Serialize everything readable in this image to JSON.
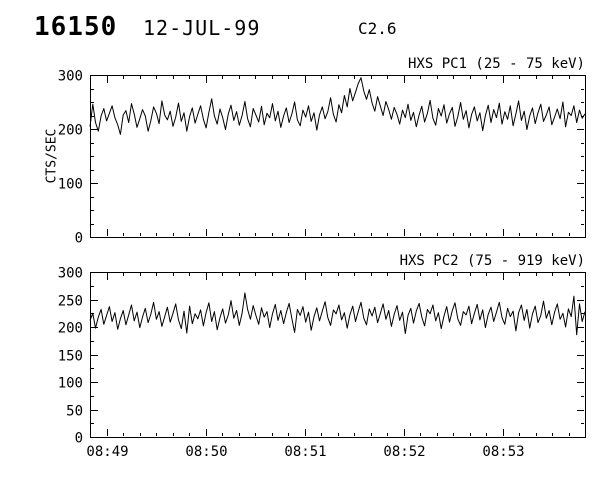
{
  "header": {
    "event_id": "16150",
    "date": "12-JUL-99",
    "goes_class": "C2.6"
  },
  "chart_data": [
    {
      "type": "line",
      "title": "HXS PC1 (25 - 75 keV)",
      "ylabel": "CTS/SEC",
      "xlabel": "",
      "ylim": [
        0,
        300
      ],
      "yticks": [
        0,
        100,
        200,
        300
      ],
      "y_minor_step": 25,
      "x_range_sec": [
        0,
        300
      ],
      "xticks_sec": [
        10,
        70,
        130,
        190,
        250
      ],
      "xtick_labels": [
        "",
        "",
        "",
        "",
        ""
      ],
      "time_tick_names": [
        "08:49",
        "08:50",
        "08:51",
        "08:52",
        "08:53"
      ],
      "x_minor_step_sec": 10,
      "grid": false,
      "values": [
        204,
        246,
        212,
        196,
        224,
        238,
        215,
        229,
        243,
        221,
        208,
        190,
        226,
        234,
        212,
        247,
        228,
        203,
        219,
        236,
        224,
        196,
        215,
        241,
        229,
        210,
        252,
        226,
        217,
        233,
        205,
        222,
        248,
        214,
        230,
        196,
        223,
        239,
        211,
        227,
        243,
        218,
        202,
        231,
        256,
        224,
        209,
        237,
        221,
        199,
        228,
        244,
        216,
        232,
        207,
        225,
        251,
        219,
        204,
        238,
        226,
        213,
        242,
        208,
        229,
        221,
        247,
        215,
        233,
        203,
        224,
        239,
        212,
        228,
        250,
        217,
        206,
        235,
        222,
        243,
        214,
        230,
        198,
        226,
        241,
        219,
        232,
        258,
        227,
        213,
        245,
        230,
        262,
        241,
        275,
        252,
        268,
        284,
        295,
        270,
        255,
        273,
        248,
        233,
        260,
        242,
        225,
        251,
        236,
        218,
        240,
        227,
        209,
        235,
        221,
        246,
        216,
        231,
        204,
        226,
        242,
        213,
        229,
        253,
        220,
        207,
        238,
        224,
        245,
        211,
        228,
        240,
        205,
        223,
        249,
        218,
        234,
        202,
        227,
        241,
        215,
        230,
        197,
        225,
        244,
        212,
        236,
        221,
        248,
        209,
        232,
        218,
        243,
        206,
        228,
        252,
        216,
        233,
        199,
        224,
        239,
        210,
        230,
        246,
        214,
        226,
        241,
        208,
        222,
        237,
        219,
        250,
        204,
        231,
        225,
        243,
        212,
        235,
        220,
        228
      ]
    },
    {
      "type": "line",
      "title": "HXS PC2 (75 - 919 keV)",
      "ylabel": "",
      "xlabel": "",
      "ylim": [
        0,
        300
      ],
      "yticks": [
        0,
        50,
        100,
        150,
        200,
        250,
        300
      ],
      "y_minor_step": 25,
      "x_range_sec": [
        0,
        300
      ],
      "xticks_sec": [
        10,
        70,
        130,
        190,
        250
      ],
      "xtick_labels": [
        "08:49",
        "08:50",
        "08:51",
        "08:52",
        "08:53"
      ],
      "time_tick_names": [
        "08:49",
        "08:50",
        "08:51",
        "08:52",
        "08:53"
      ],
      "x_minor_step_sec": 10,
      "grid": false,
      "values": [
        212,
        225,
        198,
        218,
        232,
        205,
        221,
        237,
        210,
        226,
        196,
        215,
        230,
        204,
        222,
        240,
        211,
        227,
        199,
        218,
        234,
        208,
        223,
        245,
        214,
        228,
        201,
        219,
        236,
        209,
        225,
        242,
        213,
        197,
        229,
        189,
        238,
        206,
        224,
        215,
        231,
        202,
        226,
        244,
        210,
        228,
        195,
        217,
        233,
        207,
        222,
        248,
        216,
        230,
        203,
        225,
        262,
        232,
        214,
        239,
        221,
        205,
        235,
        218,
        228,
        199,
        224,
        241,
        212,
        230,
        206,
        226,
        243,
        215,
        190,
        232,
        221,
        237,
        209,
        227,
        194,
        219,
        235,
        211,
        229,
        246,
        217,
        203,
        231,
        224,
        240,
        213,
        226,
        198,
        222,
        238,
        210,
        228,
        245,
        216,
        204,
        233,
        220,
        236,
        208,
        225,
        242,
        214,
        230,
        201,
        223,
        239,
        212,
        227,
        188,
        221,
        234,
        207,
        229,
        243,
        218,
        202,
        232,
        224,
        240,
        211,
        226,
        197,
        220,
        237,
        209,
        230,
        244,
        215,
        203,
        228,
        222,
        238,
        206,
        225,
        241,
        213,
        231,
        199,
        223,
        236,
        210,
        227,
        245,
        217,
        205,
        234,
        219,
        229,
        193,
        226,
        240,
        212,
        232,
        198,
        224,
        238,
        208,
        221,
        247,
        216,
        230,
        204,
        227,
        242,
        214,
        225,
        200,
        233,
        219,
        256,
        186,
        242,
        210,
        228
      ]
    }
  ]
}
